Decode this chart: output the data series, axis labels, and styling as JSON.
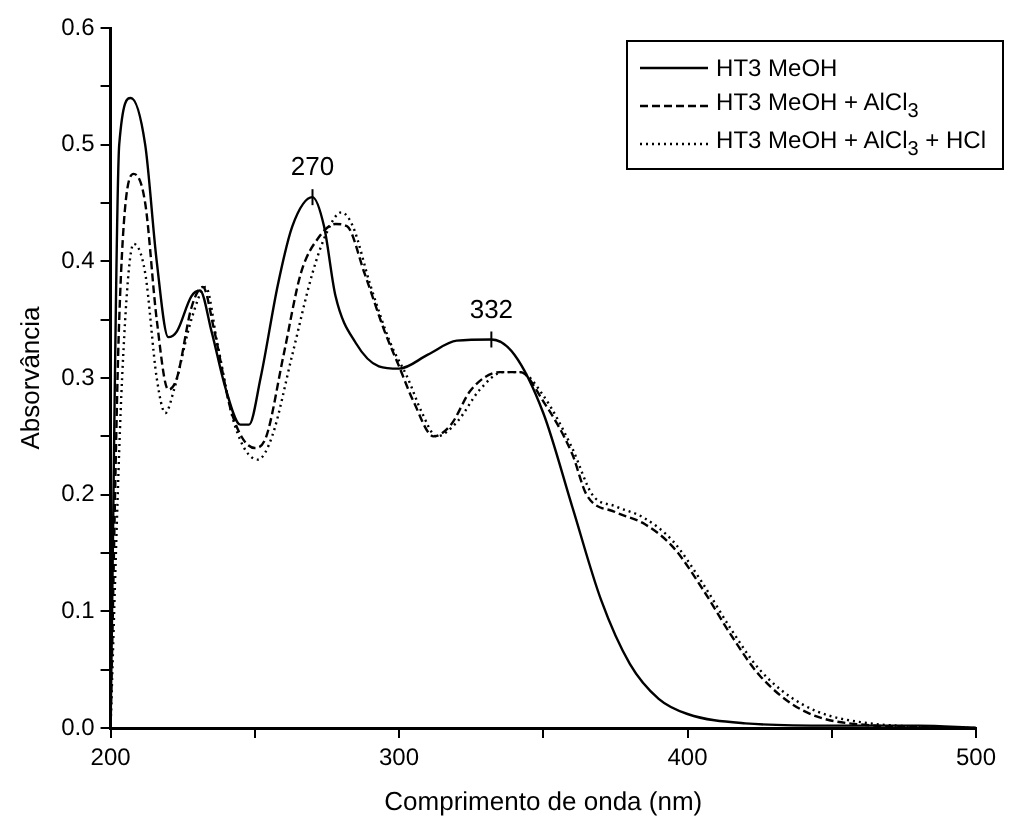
{
  "chart_data": {
    "type": "line",
    "xlabel": "Comprimento de onda (nm)",
    "ylabel": "Absorvância",
    "xlim": [
      200,
      500
    ],
    "ylim": [
      0,
      0.6
    ],
    "xticks": [
      200,
      {
        "value": 250,
        "label": null
      },
      300,
      {
        "value": 350,
        "label": null
      },
      400,
      {
        "value": 450,
        "label": null
      },
      500
    ],
    "yticks": [
      {
        "value": 0,
        "label": "0.0"
      },
      {
        "value": 0.05,
        "label": null
      },
      {
        "value": 0.1,
        "label": "0.1"
      },
      {
        "value": 0.15,
        "label": null
      },
      {
        "value": 0.2,
        "label": "0.2"
      },
      {
        "value": 0.25,
        "label": null
      },
      {
        "value": 0.3,
        "label": "0.3"
      },
      {
        "value": 0.35,
        "label": null
      },
      {
        "value": 0.4,
        "label": "0.4"
      },
      {
        "value": 0.45,
        "label": null
      },
      {
        "value": 0.5,
        "label": "0.5"
      },
      {
        "value": 0.55,
        "label": null
      },
      {
        "value": 0.6,
        "label": "0.6"
      }
    ],
    "grid": false,
    "legend": "top right",
    "marker": "none",
    "annotations": [
      {
        "text": "270",
        "x": 270,
        "y": 0.455
      },
      {
        "text": "332",
        "x": 332,
        "y": 0.333
      }
    ],
    "series": [
      {
        "name": "HT3 MeOH",
        "color": "#000000",
        "line_style": "solid",
        "x": [
          200,
          203,
          207,
          212,
          216,
          220,
          223,
          228,
          231,
          235,
          240,
          245,
          248,
          252,
          258,
          263,
          270,
          274,
          278,
          285,
          293,
          300,
          310,
          320,
          332,
          340,
          350,
          360,
          370,
          380,
          390,
          400,
          420,
          450,
          480,
          500
        ],
        "values": [
          0,
          0.5,
          0.54,
          0.5,
          0.4,
          0.335,
          0.34,
          0.37,
          0.375,
          0.34,
          0.29,
          0.26,
          0.26,
          0.3,
          0.38,
          0.43,
          0.455,
          0.43,
          0.37,
          0.33,
          0.31,
          0.308,
          0.32,
          0.332,
          0.333,
          0.32,
          0.27,
          0.19,
          0.11,
          0.055,
          0.025,
          0.012,
          0.004,
          0.002,
          0.002,
          0
        ]
      },
      {
        "name": "HT3 MeOH + AlCl$_{3}$",
        "color": "#000000",
        "line_style": "dashed",
        "x": [
          200,
          203,
          208,
          212,
          216,
          220,
          223,
          228,
          232,
          236,
          242,
          250,
          254,
          260,
          266,
          272,
          278,
          282,
          288,
          295,
          300,
          305,
          312,
          318,
          325,
          335,
          342,
          350,
          360,
          365,
          375,
          385,
          395,
          405,
          415,
          425,
          440,
          460,
          500
        ],
        "values": [
          0,
          0.35,
          0.475,
          0.45,
          0.35,
          0.29,
          0.3,
          0.36,
          0.378,
          0.34,
          0.27,
          0.24,
          0.25,
          0.32,
          0.39,
          0.42,
          0.432,
          0.43,
          0.39,
          0.34,
          0.31,
          0.28,
          0.25,
          0.26,
          0.29,
          0.305,
          0.305,
          0.28,
          0.235,
          0.2,
          0.185,
          0.175,
          0.155,
          0.12,
          0.08,
          0.045,
          0.015,
          0.003,
          0
        ]
      },
      {
        "name": "HT3 MeOH + AlCl$_{3}$ + HCl",
        "color": "#000000",
        "line_style": "dotted",
        "x": [
          200,
          204,
          208,
          212,
          216,
          219,
          222,
          228,
          233,
          237,
          243,
          251,
          256,
          263,
          270,
          275,
          280,
          284,
          290,
          297,
          303,
          308,
          313,
          320,
          328,
          336,
          342,
          350,
          360,
          367,
          375,
          385,
          395,
          405,
          415,
          425,
          440,
          460,
          500
        ],
        "values": [
          0,
          0.3,
          0.415,
          0.39,
          0.3,
          0.27,
          0.29,
          0.35,
          0.378,
          0.33,
          0.26,
          0.23,
          0.25,
          0.32,
          0.39,
          0.425,
          0.442,
          0.43,
          0.38,
          0.33,
          0.3,
          0.27,
          0.25,
          0.262,
          0.29,
          0.305,
          0.305,
          0.285,
          0.24,
          0.2,
          0.19,
          0.18,
          0.16,
          0.125,
          0.085,
          0.05,
          0.02,
          0.005,
          0
        ]
      }
    ]
  }
}
